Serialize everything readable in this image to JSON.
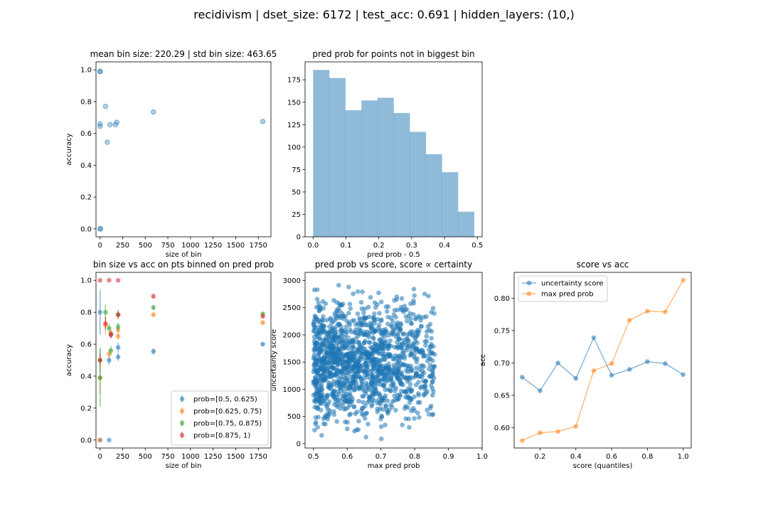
{
  "figure": {
    "suptitle": "recidivism | dset_size: 6172 | test_acc: 0.691 | hidden_layers: (10,)"
  },
  "chart_data": [
    {
      "id": "p1",
      "type": "scatter",
      "title": "mean bin size: 220.29 | std bin size: 463.65",
      "xlabel": "size of bin",
      "ylabel": "accuracy",
      "xlim": [
        -45,
        1890
      ],
      "ylim": [
        -0.05,
        1.05
      ],
      "xticks": [
        0,
        250,
        500,
        750,
        1000,
        1250,
        1500,
        1750
      ],
      "yticks": [
        0.0,
        0.2,
        0.4,
        0.6,
        0.8,
        1.0
      ],
      "yprec": 1,
      "color": "#1f77b4",
      "alpha": 0.35,
      "points": [
        [
          0,
          0.99
        ],
        [
          1,
          0.99
        ],
        [
          2,
          0.0
        ],
        [
          3,
          0.0
        ],
        [
          0,
          0.66
        ],
        [
          1,
          0.645
        ],
        [
          60,
          0.77
        ],
        [
          80,
          0.545
        ],
        [
          110,
          0.655
        ],
        [
          170,
          0.655
        ],
        [
          185,
          0.67
        ],
        [
          590,
          0.735
        ],
        [
          1800,
          0.675
        ]
      ]
    },
    {
      "id": "p2",
      "type": "bar",
      "title": "pred prob for points not in biggest bin",
      "xlabel": "pred prob - 0.5",
      "ylabel": "",
      "xlim": [
        -0.0245,
        0.5145
      ],
      "ylim": [
        0,
        195
      ],
      "xticks": [
        0.0,
        0.1,
        0.2,
        0.3,
        0.4,
        0.5
      ],
      "yticks": [
        0,
        25,
        50,
        75,
        100,
        125,
        150,
        175
      ],
      "xprec": 1,
      "color": "#1f77b4",
      "alpha": 0.5,
      "bin_edges": [
        0.0,
        0.049,
        0.098,
        0.147,
        0.196,
        0.245,
        0.294,
        0.343,
        0.392,
        0.441,
        0.49
      ],
      "counts": [
        186,
        177,
        141,
        152,
        155,
        138,
        117,
        92,
        72,
        28
      ]
    },
    {
      "id": "p4",
      "type": "scatter",
      "title": "bin size vs acc on pts binned on pred prob",
      "xlabel": "size of bin",
      "ylabel": "accuracy",
      "xlim": [
        -45,
        1890
      ],
      "ylim": [
        -0.05,
        1.05
      ],
      "xticks": [
        0,
        250,
        500,
        750,
        1000,
        1250,
        1500,
        1750
      ],
      "yticks": [
        0.0,
        0.2,
        0.4,
        0.6,
        0.8,
        1.0
      ],
      "yprec": 1,
      "legend_position": "lower right",
      "series": [
        {
          "name": "prob=[0.5, 0.625)",
          "color": "#1f77b4",
          "points": [
            [
              0,
              0.8,
              0.14
            ],
            [
              0,
              0.0,
              0.0
            ],
            [
              100,
              0.0,
              0.0
            ],
            [
              100,
              0.5,
              0.03
            ],
            [
              120,
              0.66,
              0.02
            ],
            [
              200,
              0.52,
              0.025
            ],
            [
              200,
              0.58,
              0.03
            ],
            [
              590,
              0.555,
              0.02
            ],
            [
              1800,
              0.6,
              0.01
            ]
          ]
        },
        {
          "name": "prob=[0.625, 0.75)",
          "color": "#ff7f0e",
          "points": [
            [
              0,
              0.39,
              0.1
            ],
            [
              0,
              0.0,
              0.0
            ],
            [
              60,
              0.72,
              0.06
            ],
            [
              100,
              0.54,
              0.03
            ],
            [
              120,
              0.67,
              0.02
            ],
            [
              200,
              0.65,
              0.02
            ],
            [
              200,
              0.69,
              0.02
            ],
            [
              590,
              0.785,
              0.015
            ],
            [
              1800,
              0.735,
              0.01
            ]
          ]
        },
        {
          "name": "prob=[0.75, 0.875)",
          "color": "#2ca02c",
          "points": [
            [
              0,
              0.39,
              0.18
            ],
            [
              0,
              0.5,
              0.08
            ],
            [
              60,
              0.8,
              0.05
            ],
            [
              100,
              0.7,
              0.03
            ],
            [
              120,
              0.56,
              0.03
            ],
            [
              200,
              0.71,
              0.025
            ],
            [
              200,
              0.785,
              0.02
            ],
            [
              590,
              0.83,
              0.015
            ],
            [
              1800,
              0.79,
              0.01
            ]
          ]
        },
        {
          "name": "prob=[0.875, 1)",
          "color": "#d62728",
          "points": [
            [
              0,
              1.0,
              0.0
            ],
            [
              0,
              0.5,
              0.04
            ],
            [
              60,
              0.73,
              0.04
            ],
            [
              100,
              1.0,
              0.0
            ],
            [
              120,
              0.66,
              0.025
            ],
            [
              200,
              1.0,
              0.0
            ],
            [
              200,
              0.785,
              0.03
            ],
            [
              590,
              0.9,
              0.015
            ],
            [
              1800,
              0.775,
              0.01
            ]
          ]
        }
      ]
    },
    {
      "id": "p5",
      "type": "scatter",
      "title": "pred prob vs score, score ∝ certainty",
      "xlabel": "max pred prob",
      "ylabel": "uncertainty score",
      "xlim": [
        0.475,
        1.0
      ],
      "ylim": [
        -80,
        3150
      ],
      "xticks": [
        0.5,
        0.6,
        0.7,
        0.8,
        0.9,
        1.0
      ],
      "yticks": [
        0,
        500,
        1000,
        1500,
        2000,
        2500,
        3000
      ],
      "xprec": 1,
      "color": "#1f77b4",
      "alpha": 0.55,
      "n_points": 1500,
      "x_range": [
        0.5,
        0.99
      ],
      "y_range": [
        0,
        3050
      ],
      "seed": 7
    },
    {
      "id": "p6",
      "type": "line",
      "title": "score vs acc",
      "xlabel": "score (quantiles)",
      "ylabel": "acc",
      "xlim": [
        0.055,
        1.045
      ],
      "ylim": [
        0.5685,
        0.84
      ],
      "xticks": [
        0.2,
        0.4,
        0.6,
        0.8,
        1.0
      ],
      "yticks": [
        0.6,
        0.65,
        0.7,
        0.75,
        0.8
      ],
      "xprec": 1,
      "yprec": 2,
      "legend_position": "upper left",
      "x": [
        0.1,
        0.2,
        0.3,
        0.4,
        0.5,
        0.6,
        0.7,
        0.8,
        0.9,
        1.0
      ],
      "series": [
        {
          "name": "uncertainty score",
          "color": "#1f77b4",
          "values": [
            0.678,
            0.657,
            0.7,
            0.676,
            0.739,
            0.681,
            0.69,
            0.702,
            0.699,
            0.682
          ]
        },
        {
          "name": "max pred prob",
          "color": "#ff7f0e",
          "values": [
            0.58,
            0.592,
            0.594,
            0.602,
            0.688,
            0.699,
            0.766,
            0.78,
            0.779,
            0.828
          ]
        }
      ]
    }
  ]
}
